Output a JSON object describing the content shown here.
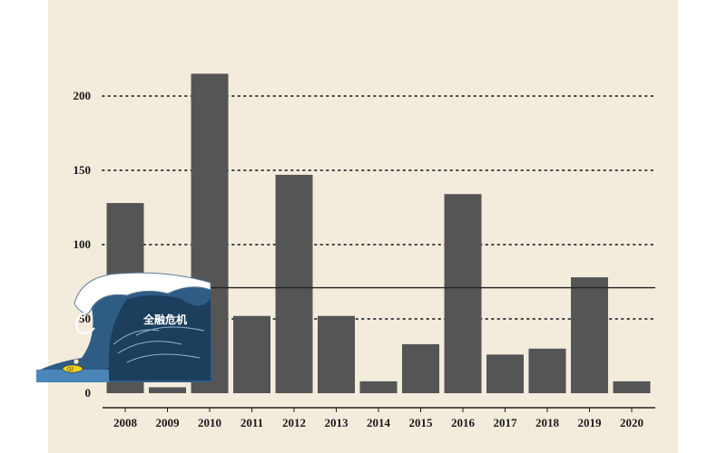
{
  "chart_data": {
    "type": "bar",
    "categories": [
      "2008",
      "2009",
      "2010",
      "2011",
      "2012",
      "2013",
      "2014",
      "2015",
      "2016",
      "2017",
      "2018",
      "2019",
      "2020"
    ],
    "values": [
      128,
      4,
      215,
      52,
      147,
      52,
      8,
      33,
      134,
      26,
      30,
      78,
      8
    ],
    "ylim": [
      0,
      215
    ],
    "yticks": [
      0,
      50,
      100,
      150,
      200
    ],
    "ytick_labels": [
      "0",
      "50",
      "100",
      "150",
      "200"
    ],
    "reference_line": 71,
    "title": "",
    "xlabel": "",
    "ylabel": "",
    "grid": "horizontal-dotted",
    "bar_color": "#555555",
    "background_color": "#f3ecdd"
  },
  "illustration": {
    "name": "tsunami-wave",
    "label": "全融危机",
    "boat_label": "Q2"
  }
}
